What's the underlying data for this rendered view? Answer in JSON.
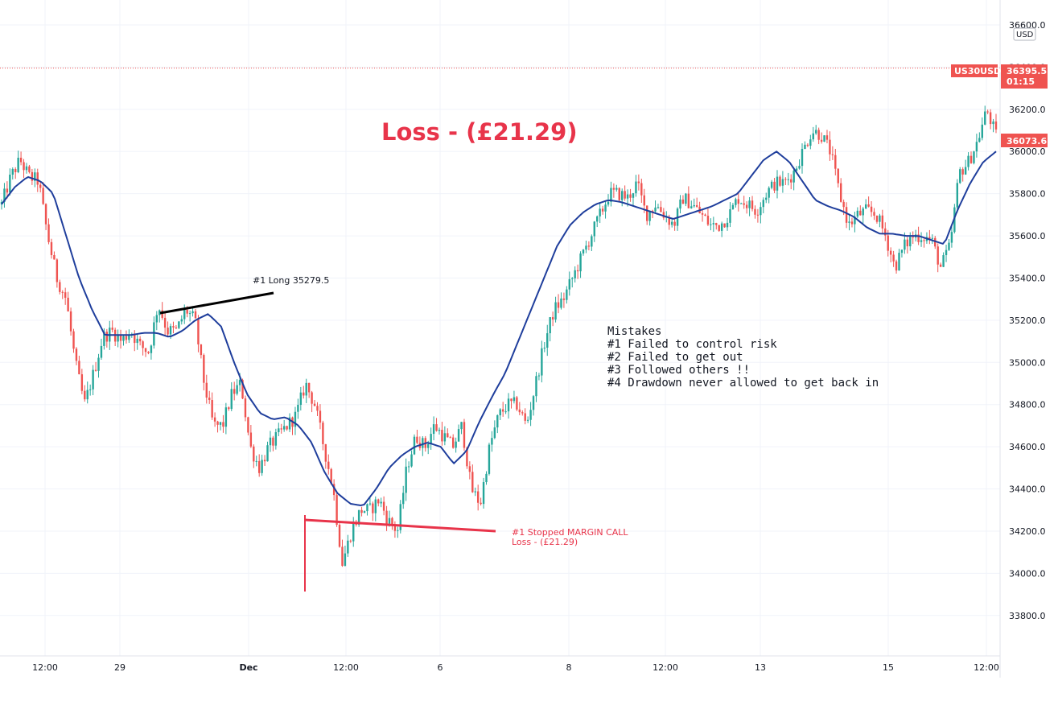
{
  "chart_data": {
    "type": "candlestick",
    "symbol": "US30USD",
    "currency": "USD",
    "ylim": [
      33700,
      36600
    ],
    "y_ticks": [
      "36600.0",
      "36400.0",
      "36200.0",
      "36000.0",
      "35800.0",
      "35600.0",
      "35400.0",
      "35200.0",
      "35000.0",
      "34800.0",
      "34600.0",
      "34400.0",
      "34200.0",
      "34000.0",
      "33800.0"
    ],
    "x_ticks": [
      {
        "label": "12:00",
        "bold": false
      },
      {
        "label": "29",
        "bold": false
      },
      {
        "label": "Dec",
        "bold": true
      },
      {
        "label": "12:00",
        "bold": false
      },
      {
        "label": "6",
        "bold": false
      },
      {
        "label": "8",
        "bold": false
      },
      {
        "label": "12:00",
        "bold": false
      },
      {
        "label": "13",
        "bold": false
      },
      {
        "label": "15",
        "bold": false
      },
      {
        "label": "12:00",
        "bold": false
      }
    ],
    "price_path": [
      35750,
      35880,
      35960,
      35880,
      35860,
      35600,
      35400,
      35300,
      35000,
      34800,
      34950,
      35120,
      35150,
      35100,
      35150,
      35080,
      35050,
      35279.5,
      35150,
      35150,
      35250,
      35200,
      34900,
      34700,
      34700,
      34850,
      34900,
      34600,
      34500,
      34600,
      34650,
      34700,
      34750,
      34900,
      34800,
      34600,
      34400,
      34050,
      34200,
      34300,
      34300,
      34350,
      34250,
      34200,
      34500,
      34650,
      34600,
      34700,
      34650,
      34600,
      34700,
      34400,
      34330,
      34600,
      34750,
      34800,
      34800,
      34700,
      34900,
      35100,
      35250,
      35300,
      35400,
      35500,
      35600,
      35700,
      35800,
      35800,
      35780,
      35850,
      35700,
      35750,
      35700,
      35650,
      35780,
      35750,
      35700,
      35650,
      35650,
      35700,
      35780,
      35750,
      35720,
      35800,
      35850,
      35850,
      35900,
      36000,
      36100,
      36080,
      36000,
      35800,
      35650,
      35700,
      35720,
      35700,
      35600,
      35450,
      35550,
      35600,
      35600,
      35580,
      35450,
      35550,
      35900,
      35950,
      36050,
      36200,
      36073.6
    ],
    "ma_path": [
      35750,
      35830,
      35880,
      35860,
      35800,
      35600,
      35400,
      35250,
      35130,
      35130,
      35130,
      35140,
      35140,
      35120,
      35150,
      35200,
      35230,
      35170,
      35000,
      34850,
      34760,
      34730,
      34740,
      34700,
      34620,
      34480,
      34380,
      34330,
      34320,
      34400,
      34500,
      34560,
      34600,
      34620,
      34600,
      34520,
      34580,
      34720,
      34840,
      34950,
      35100,
      35250,
      35400,
      35550,
      35650,
      35710,
      35750,
      35770,
      35760,
      35740,
      35720,
      35700,
      35680,
      35700,
      35720,
      35740,
      35770,
      35800,
      35880,
      35960,
      36000,
      35950,
      35860,
      35770,
      35740,
      35720,
      35690,
      35640,
      35610,
      35610,
      35600,
      35600,
      35580,
      35560,
      35720,
      35850,
      35950,
      36000
    ],
    "series": [
      {
        "name": "US30USD",
        "values": [
          36395.5,
          36073.6
        ]
      }
    ],
    "last_price": "36395.5",
    "countdown": "01:15",
    "second_price": "36073.6",
    "legend": "none",
    "grid": true
  },
  "annotations": {
    "title": "Loss - (£21.29)",
    "long_label": "#1 Long 35279.5",
    "stop_label_1": "#1 Stopped MARGIN CALL",
    "stop_label_2": "Loss - (£21.29)",
    "mistakes": [
      "Mistakes",
      "#1  Failed to control risk",
      "#2  Failed to get out",
      "#3  Followed others !!",
      "#4  Drawdown never allowed to get back in"
    ]
  },
  "colors": {
    "up": "#26a69a",
    "down": "#ef5350",
    "ma": "#1f3e9c",
    "accent": "#e8344a",
    "grid": "#f0f3fa",
    "axis_text": "#131722"
  }
}
